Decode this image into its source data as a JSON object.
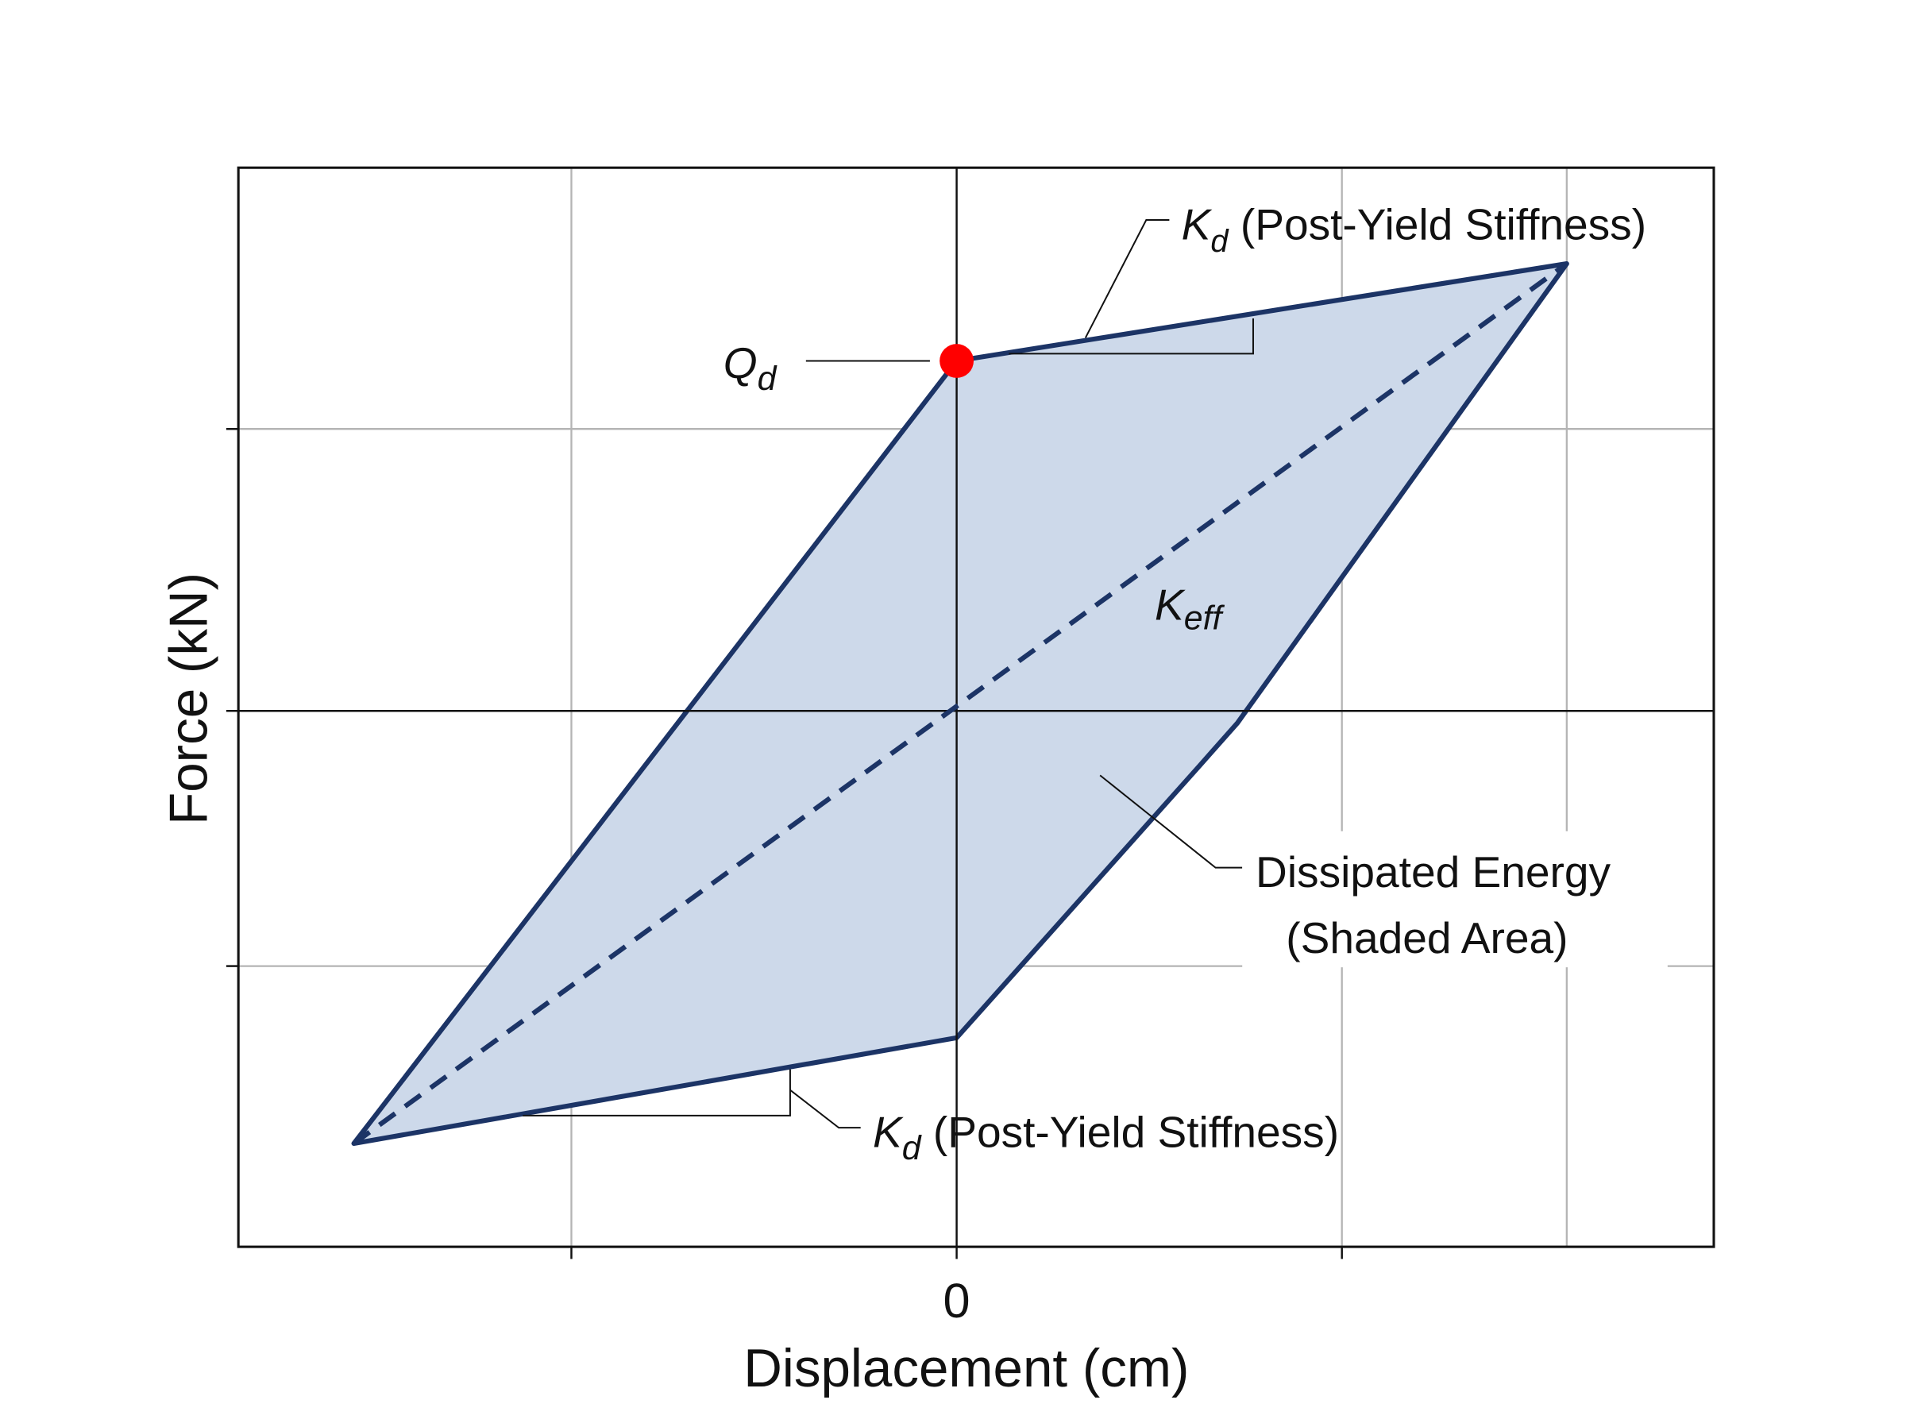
{
  "axes": {
    "x_label": "Displacement (cm)",
    "y_label": "Force (kN)",
    "x_origin_label": "0"
  },
  "annotations": {
    "kd_top": {
      "symbol": "K",
      "subscript": "d",
      "text": "(Post-Yield Stiffness)"
    },
    "qd": {
      "symbol": "Q",
      "subscript": "d"
    },
    "keff": {
      "symbol": "K",
      "subscript": "eff"
    },
    "dissipated_energy": {
      "lines": [
        "Dissipated Energy",
        "(Shaded Area)"
      ]
    },
    "kd_bottom": {
      "symbol": "K",
      "subscript": "d",
      "text": "(Post-Yield Stiffness)"
    }
  }
}
